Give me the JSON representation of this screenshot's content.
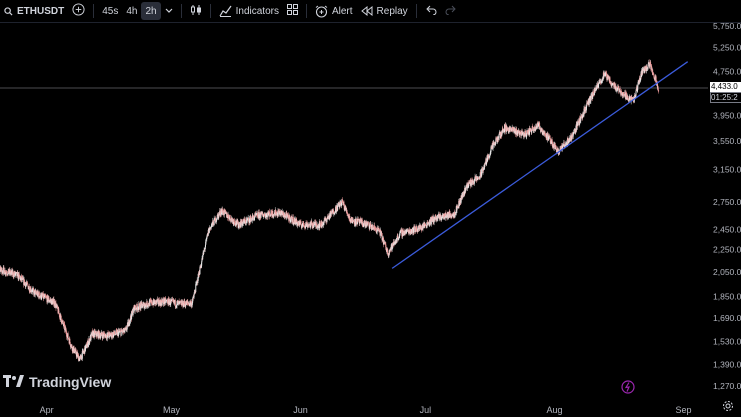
{
  "toolbar": {
    "symbol": "ETHUSDT",
    "intervals": [
      "45s",
      "4h",
      "2h"
    ],
    "active_interval": "2h",
    "indicators_label": "Indicators",
    "alert_label": "Alert",
    "replay_label": "Replay"
  },
  "brand": {
    "name": "TradingView"
  },
  "price_scale": {
    "current_price": "4,433.0",
    "countdown": "01:25:2"
  },
  "chart_data": {
    "type": "candlestick",
    "symbol": "ETHUSDT",
    "interval": "2h",
    "y_scale": "log",
    "ylim": [
      1200,
      5800
    ],
    "yticks": [
      "5,750.0",
      "5,250.0",
      "4,750.0",
      "4,433.0",
      "3,950.0",
      "3,550.0",
      "3,150.0",
      "2,750.0",
      "2,450.0",
      "2,250.0",
      "2,050.0",
      "1,850.0",
      "1,690.0",
      "1,530.0",
      "1,390.0",
      "1,270.0"
    ],
    "ytick_values": [
      5750,
      5250,
      4750,
      null,
      3950,
      3550,
      3150,
      2750,
      2450,
      2250,
      2050,
      1850,
      1690,
      1530,
      1390,
      1270
    ],
    "xticks": [
      "Apr",
      "May",
      "Jun",
      "Jul",
      "Aug",
      "Sep"
    ],
    "xtick_values": [
      "2025-04-01",
      "2025-05-01",
      "2025-06-01",
      "2025-07-01",
      "2025-08-01",
      "2025-09-01"
    ],
    "xlim": [
      "2025-03-16",
      "2025-09-10"
    ],
    "price_path": [
      [
        "2025-03-16",
        2000
      ],
      [
        "2025-03-20",
        2080
      ],
      [
        "2025-03-25",
        2020
      ],
      [
        "2025-03-29",
        1880
      ],
      [
        "2025-04-03",
        1800
      ],
      [
        "2025-04-07",
        1500
      ],
      [
        "2025-04-09",
        1420
      ],
      [
        "2025-04-12",
        1580
      ],
      [
        "2025-04-16",
        1570
      ],
      [
        "2025-04-20",
        1600
      ],
      [
        "2025-04-22",
        1760
      ],
      [
        "2025-04-26",
        1800
      ],
      [
        "2025-04-30",
        1810
      ],
      [
        "2025-05-03",
        1790
      ],
      [
        "2025-05-06",
        1800
      ],
      [
        "2025-05-08",
        2100
      ],
      [
        "2025-05-10",
        2450
      ],
      [
        "2025-05-13",
        2650
      ],
      [
        "2025-05-17",
        2500
      ],
      [
        "2025-05-22",
        2600
      ],
      [
        "2025-05-27",
        2630
      ],
      [
        "2025-06-01",
        2500
      ],
      [
        "2025-06-06",
        2500
      ],
      [
        "2025-06-11",
        2750
      ],
      [
        "2025-06-13",
        2550
      ],
      [
        "2025-06-17",
        2500
      ],
      [
        "2025-06-20",
        2430
      ],
      [
        "2025-06-22",
        2220
      ],
      [
        "2025-06-25",
        2410
      ],
      [
        "2025-06-30",
        2470
      ],
      [
        "2025-07-03",
        2560
      ],
      [
        "2025-07-08",
        2620
      ],
      [
        "2025-07-11",
        2950
      ],
      [
        "2025-07-14",
        3050
      ],
      [
        "2025-07-17",
        3450
      ],
      [
        "2025-07-20",
        3750
      ],
      [
        "2025-07-25",
        3650
      ],
      [
        "2025-07-28",
        3800
      ],
      [
        "2025-08-02",
        3400
      ],
      [
        "2025-08-05",
        3600
      ],
      [
        "2025-08-09",
        4150
      ],
      [
        "2025-08-13",
        4700
      ],
      [
        "2025-08-15",
        4500
      ],
      [
        "2025-08-18",
        4300
      ],
      [
        "2025-08-20",
        4200
      ],
      [
        "2025-08-22",
        4750
      ],
      [
        "2025-08-24",
        4900
      ],
      [
        "2025-08-26",
        4433
      ]
    ],
    "trendline": {
      "from": [
        "2025-06-23",
        2080
      ],
      "to": [
        "2025-09-02",
        4950
      ],
      "color": "#3b5bdb"
    },
    "price_line": {
      "value": 4433,
      "color": "#9598a1"
    },
    "colors": {
      "candle": "#ef9a9a",
      "background": "#000000",
      "text": "#d1d4dc"
    }
  }
}
